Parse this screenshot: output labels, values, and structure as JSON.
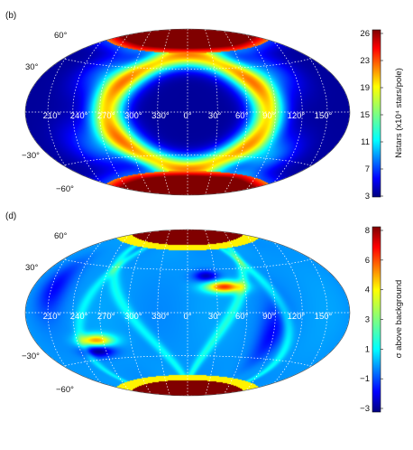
{
  "chart_data": [
    {
      "type": "heatmap",
      "panel_label": "(b)",
      "projection": "Hammer-Aitoff all-sky",
      "lon_labels": [
        "210°",
        "240°",
        "270°",
        "300°",
        "330°",
        "0°",
        "30°",
        "60°",
        "90°",
        "120°",
        "150°"
      ],
      "lat_labels": [
        "60°",
        "30°",
        "−30°",
        "−60°"
      ],
      "colorbar": {
        "title": "Nstars (x10⁴ stars/pole)",
        "ticks": [
          "26",
          "23",
          "19",
          "15",
          "11",
          "7",
          "3"
        ],
        "range": [
          3,
          26
        ],
        "colormap": [
          "#00007f",
          "#0000ff",
          "#007fff",
          "#00ffff",
          "#7fff7f",
          "#ffff00",
          "#ff7f00",
          "#ff0000",
          "#7f0000"
        ]
      },
      "features": {
        "pole_caps_value": 26,
        "center_value": 4,
        "ring_value": 17,
        "ring_lon_halfwidth_deg": 80,
        "ring_lat_halfwidth_deg": 55
      }
    },
    {
      "type": "heatmap",
      "panel_label": "(d)",
      "projection": "Hammer-Aitoff all-sky",
      "lon_labels": [
        "210°",
        "240°",
        "270°",
        "300°",
        "330°",
        "0°",
        "30°",
        "60°",
        "90°",
        "120°",
        "150°"
      ],
      "lat_labels": [
        "60°",
        "30°",
        "−30°",
        "−60°"
      ],
      "colorbar": {
        "title": "σ above background",
        "ticks": [
          "8",
          "6",
          "4",
          "3",
          "1",
          "−1",
          "−3"
        ],
        "range": [
          -3,
          8
        ],
        "colormap": [
          "#00007f",
          "#0000ff",
          "#007fff",
          "#00ffff",
          "#7fff7f",
          "#ffff00",
          "#ff7f00",
          "#ff0000",
          "#7f0000"
        ]
      },
      "features": {
        "background_value": 0,
        "pole_caps_value": 8,
        "hotspots": [
          {
            "lon": 40,
            "lat": 25,
            "value": 6
          },
          {
            "lon": 258,
            "lat": -25,
            "value": 5
          }
        ],
        "cold_spots": [
          {
            "lon": 252,
            "lat": -34,
            "value": -2.5
          },
          {
            "lon": 22,
            "lat": 36,
            "value": -2
          }
        ]
      }
    }
  ]
}
